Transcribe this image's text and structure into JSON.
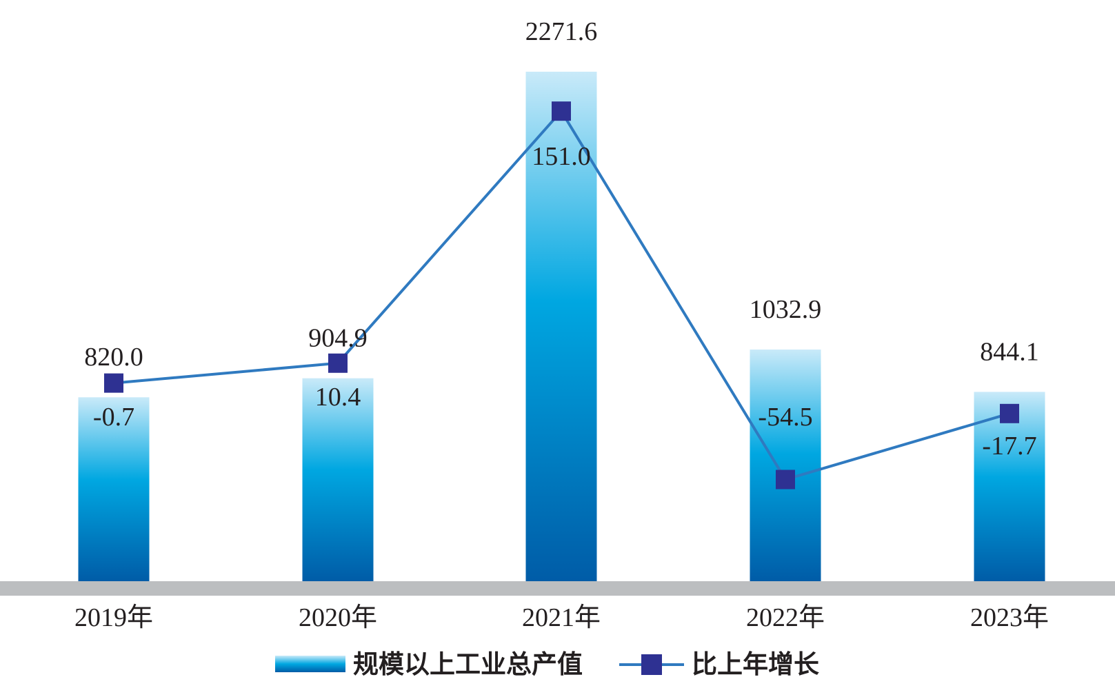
{
  "chart_data": {
    "type": "bar",
    "categories": [
      "2019年",
      "2020年",
      "2021年",
      "2022年",
      "2023年"
    ],
    "series": [
      {
        "name": "规模以上工业总产值",
        "type": "bar",
        "axis": "left",
        "values": [
          820.0,
          904.9,
          2271.6,
          1032.9,
          844.1
        ],
        "labels": [
          "820.0",
          "904.9",
          "2271.6",
          "1032.9",
          "844.1"
        ]
      },
      {
        "name": "比上年增长",
        "type": "line",
        "axis": "right",
        "values": [
          -0.7,
          10.4,
          151.0,
          -54.5,
          -17.7
        ],
        "labels": [
          "-0.7",
          "10.4",
          "151.0",
          "-54.5",
          "-17.7"
        ]
      }
    ],
    "ylim_left": [
      0,
      2400
    ],
    "ylim_right": [
      -150,
      180
    ],
    "xlabel": "",
    "ylabel": "",
    "grid": false,
    "legend_position": "bottom",
    "colors": {
      "bar_top": "#c9eaf9",
      "bar_mid": "#00a7e1",
      "bar_bottom": "#005ca7",
      "line": "#2f7ac0",
      "marker": "#2e3192",
      "axis_band": "#bcbec0",
      "text": "#231f20"
    }
  }
}
